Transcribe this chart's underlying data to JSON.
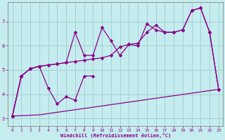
{
  "xlabel": "Windchill (Refroidissement éolien,°C)",
  "xlim": [
    -0.5,
    23.5
  ],
  "ylim": [
    2.7,
    7.8
  ],
  "xticks": [
    0,
    1,
    2,
    3,
    4,
    5,
    6,
    7,
    8,
    9,
    10,
    11,
    12,
    13,
    14,
    15,
    16,
    17,
    18,
    19,
    20,
    21,
    22,
    23
  ],
  "yticks": [
    3,
    4,
    5,
    6,
    7
  ],
  "background_color": "#c5ecee",
  "grid_color": "#9dcdd0",
  "line_color": "#8b008b",
  "figsize": [
    3.2,
    2.0
  ],
  "dpi": 100,
  "line1_x": [
    0,
    1,
    2,
    3,
    4,
    5,
    6,
    7,
    8,
    9,
    10,
    11,
    12,
    13,
    14,
    15,
    16,
    17,
    18,
    19,
    20,
    21,
    22,
    23
  ],
  "line1_y": [
    3.1,
    4.75,
    5.05,
    5.15,
    5.2,
    5.25,
    5.3,
    5.35,
    5.4,
    5.45,
    5.5,
    5.6,
    5.95,
    6.05,
    6.1,
    6.55,
    6.85,
    6.55,
    6.55,
    6.65,
    7.45,
    7.55,
    6.55,
    4.2
  ],
  "line2_x": [
    0,
    1,
    2,
    3,
    4,
    5,
    6,
    7,
    8,
    9,
    10,
    11,
    12,
    13,
    14,
    15,
    16,
    17,
    18,
    19,
    20,
    21,
    22,
    23
  ],
  "line2_y": [
    3.1,
    4.75,
    5.05,
    5.15,
    5.2,
    5.25,
    5.3,
    6.55,
    5.6,
    5.6,
    6.75,
    6.2,
    5.6,
    6.05,
    6.0,
    6.9,
    6.65,
    6.55,
    6.55,
    6.65,
    7.45,
    7.55,
    6.55,
    4.2
  ],
  "line3_x": [
    0,
    1,
    2,
    3,
    4,
    5,
    6,
    7,
    8,
    9
  ],
  "line3_y": [
    3.1,
    4.75,
    5.05,
    5.15,
    4.25,
    3.6,
    3.9,
    3.75,
    4.75,
    4.75
  ],
  "line4_x": [
    0,
    3,
    23
  ],
  "line4_y": [
    3.1,
    3.15,
    4.2
  ]
}
